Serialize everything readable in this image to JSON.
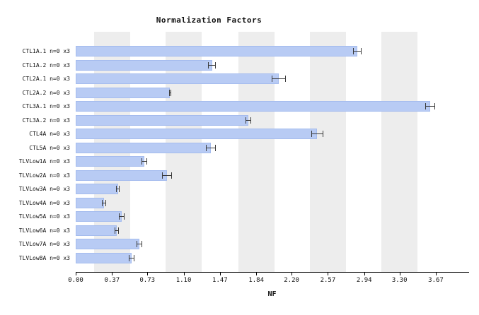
{
  "chart_data": {
    "type": "bar",
    "orientation": "horizontal",
    "title": "Normalization Factors",
    "xlabel": "NF",
    "xlim": [
      0,
      3.67
    ],
    "xticks": [
      0.0,
      0.37,
      0.73,
      1.1,
      1.47,
      1.84,
      2.2,
      2.57,
      2.94,
      3.3,
      3.67
    ],
    "xtick_labels": [
      "0.00",
      "0.37",
      "0.73",
      "1.10",
      "1.47",
      "1.84",
      "2.20",
      "2.57",
      "2.94",
      "3.30",
      "3.67"
    ],
    "categories": [
      "CTL1A.1 n=0 x3",
      "CTL1A.2 n=0 x3",
      "CTL2A.1 n=0 x3",
      "CTL2A.2 n=0 x3",
      "CTL3A.1 n=0 x3",
      "CTL3A.2 n=0 x3",
      "CTL4A n=0 x3",
      "CTL5A n=0 x3",
      "TLVLow1A n=0 x3",
      "TLVLow2A n=0 x3",
      "TLVLow3A n=0 x3",
      "TLVLow4A n=0 x3",
      "TLVLow5A n=0 x3",
      "TLVLow6A n=0 x3",
      "TLVLow7A n=0 x3",
      "TLVLow8A n=0 x3"
    ],
    "values": [
      2.87,
      1.39,
      2.07,
      0.96,
      3.61,
      1.76,
      2.46,
      1.38,
      0.7,
      0.93,
      0.43,
      0.29,
      0.47,
      0.42,
      0.65,
      0.57
    ],
    "errors": [
      0.04,
      0.04,
      0.07,
      0.01,
      0.05,
      0.03,
      0.06,
      0.05,
      0.03,
      0.05,
      0.02,
      0.02,
      0.03,
      0.02,
      0.03,
      0.03
    ],
    "bar_color": "#b8cbf4",
    "stripe_color": "#ededed",
    "grid": false,
    "legend": null
  }
}
